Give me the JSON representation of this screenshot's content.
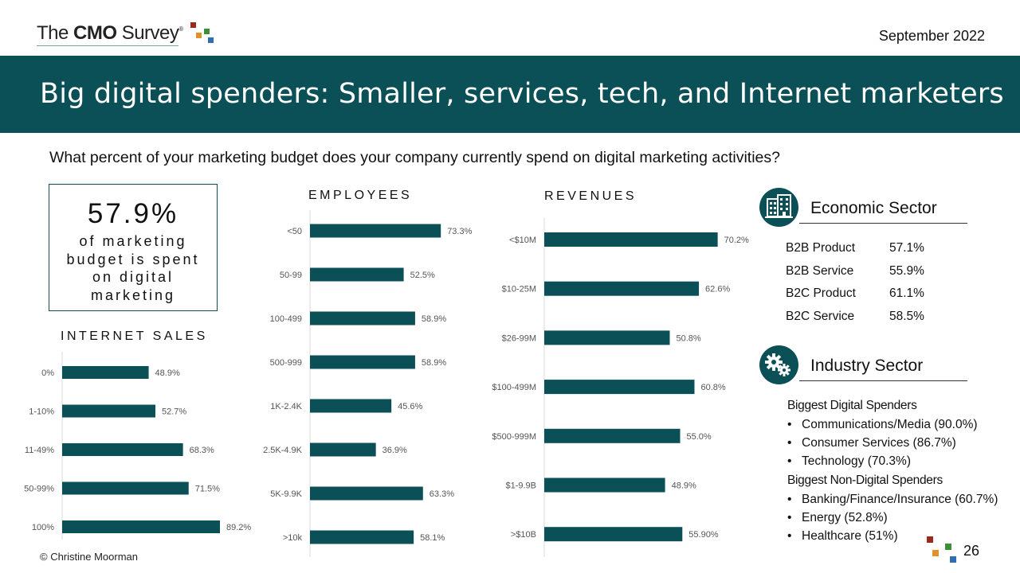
{
  "header": {
    "logo_text_prefix": "The ",
    "logo_text_bold": "CMO",
    "logo_text_suffix": " Survey",
    "logo_registered": "®",
    "date": "September 2022"
  },
  "banner": {
    "title": "Big digital spenders: Smaller, services, tech, and Internet marketers"
  },
  "question": "What percent of your marketing budget does your company currently spend on digital marketing activities?",
  "stat": {
    "value": "57.9%",
    "text": "of marketing budget is spent on digital marketing"
  },
  "chart_data": [
    {
      "type": "bar",
      "orientation": "horizontal",
      "title": "INTERNET SALES",
      "categories": [
        "0%",
        "1-10%",
        "11-49%",
        "50-99%",
        "100%"
      ],
      "values": [
        48.9,
        52.7,
        68.3,
        71.5,
        89.2
      ],
      "labels": [
        "48.9%",
        "52.7%",
        "68.3%",
        "71.5%",
        "89.2%"
      ],
      "xlim": [
        0,
        100
      ],
      "grid": false
    },
    {
      "type": "bar",
      "orientation": "horizontal",
      "title": "EMPLOYEES",
      "categories": [
        "<50",
        "50-99",
        "100-499",
        "500-999",
        "1K-2.4K",
        "2.5K-4.9K",
        "5K-9.9K",
        ">10k"
      ],
      "values": [
        73.3,
        52.5,
        58.9,
        58.9,
        45.6,
        36.9,
        63.3,
        58.1
      ],
      "labels": [
        "73.3%",
        "52.5%",
        "58.9%",
        "58.9%",
        "45.6%",
        "36.9%",
        "63.3%",
        "58.1%"
      ],
      "xlim": [
        0,
        100
      ],
      "grid": false
    },
    {
      "type": "bar",
      "orientation": "horizontal",
      "title": "REVENUES",
      "categories": [
        "<$10M",
        "$10-25M",
        "$26-99M",
        "$100-499M",
        "$500-999M",
        "$1-9.9B",
        ">$10B"
      ],
      "values": [
        70.2,
        62.6,
        50.8,
        60.8,
        55.0,
        48.9,
        55.9
      ],
      "labels": [
        "70.2%",
        "62.6%",
        "50.8%",
        "60.8%",
        "55.0%",
        "48.9%",
        "55.90%"
      ],
      "xlim": [
        0,
        100
      ],
      "grid": false
    }
  ],
  "economic_sector": {
    "title": "Economic Sector",
    "icon": "buildings-icon",
    "rows": [
      {
        "label": "B2B Product",
        "value": "57.1%"
      },
      {
        "label": "B2B Service",
        "value": "55.9%"
      },
      {
        "label": "B2C Product",
        "value": "61.1%"
      },
      {
        "label": "B2C Service",
        "value": "58.5%"
      }
    ]
  },
  "industry_sector": {
    "title": "Industry Sector",
    "icon": "gears-icon",
    "digital_heading": "Biggest Digital Spenders",
    "digital_items": [
      "Communications/Media (90.0%)",
      "Consumer Services (86.7%)",
      "Technology (70.3%)"
    ],
    "non_digital_heading": "Biggest Non-Digital Spenders",
    "non_digital_items": [
      "Banking/Finance/Insurance (60.7%)",
      "Energy (52.8%)",
      "Healthcare (51%)"
    ],
    "bullet": "•"
  },
  "footer": {
    "copyright": "© Christine Moorman",
    "page_number": "26"
  },
  "colors": {
    "brand_teal": "#0b4f57",
    "logo_red": "#9b2a1e",
    "logo_orange": "#e0912a",
    "logo_green": "#3d8f3a",
    "logo_blue": "#2f6eb5"
  }
}
